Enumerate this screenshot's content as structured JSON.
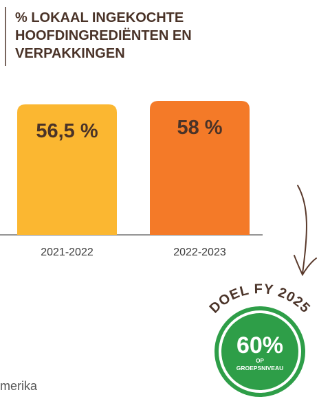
{
  "chart_data": {
    "type": "bar",
    "title": [
      "% LOKAAL INGEKOCHTE",
      "HOOFDINGREDIËNTEN EN",
      "VERPAKKINGEN"
    ],
    "categories": [
      "2021-2022",
      "2022-2023"
    ],
    "series": [
      {
        "values": [
          56.5,
          58
        ],
        "value_labels": [
          "56,5 %",
          "58 %"
        ],
        "colors": [
          "#fbb731",
          "#f47a28"
        ]
      }
    ],
    "goal": {
      "heading": "DOEL FY 2025",
      "value_label": "60%",
      "line1": "OP",
      "line2": "GROEPSNIVEAU"
    },
    "footer": "merika"
  }
}
